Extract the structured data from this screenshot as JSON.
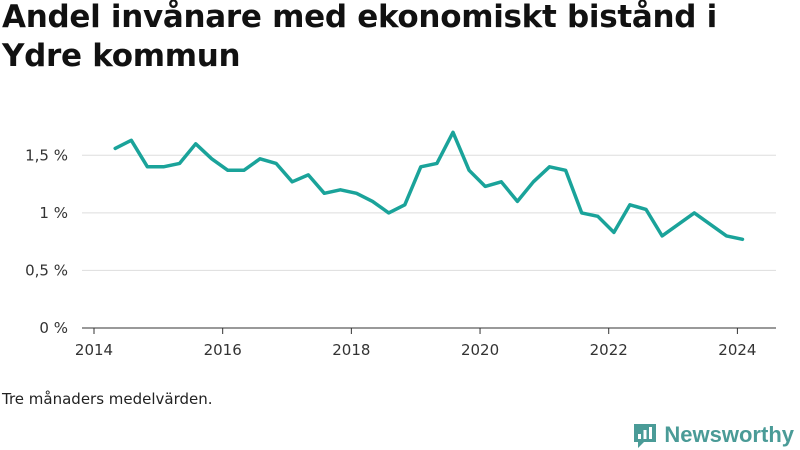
{
  "brand": {
    "name": "Newsworthy",
    "color": "#4a9b97",
    "icon": "newsworthy-logo-icon"
  },
  "footnote": "Tre månaders medelvärden.",
  "chart_data": {
    "type": "line",
    "title": "Andel invånare med ekonomiskt bistånd i Ydre kommun",
    "xlabel": "",
    "ylabel": "",
    "x_ticks": [
      "2014",
      "2016",
      "2018",
      "2020",
      "2022",
      "2024"
    ],
    "x_tick_values": [
      2014,
      2016,
      2018,
      2020,
      2022,
      2024
    ],
    "y_ticks": [
      "0 %",
      "0,5 %",
      "1 %",
      "1,5 %"
    ],
    "y_tick_values": [
      0,
      0.5,
      1,
      1.5
    ],
    "xlim": [
      2014,
      2024.6
    ],
    "ylim": [
      0,
      1.85
    ],
    "grid": true,
    "line_color": "#1aa39a",
    "series": [
      {
        "x": [
          2014.33,
          2014.58,
          2014.83,
          2015.08,
          2015.33,
          2015.58,
          2015.83,
          2016.08,
          2016.33,
          2016.58,
          2016.83,
          2017.08,
          2017.33,
          2017.58,
          2017.83,
          2018.08,
          2018.33,
          2018.58,
          2018.83,
          2019.08,
          2019.33,
          2019.58,
          2019.83,
          2020.08,
          2020.33,
          2020.58,
          2020.83,
          2021.08,
          2021.33,
          2021.58,
          2021.83,
          2022.08,
          2022.33,
          2022.58,
          2022.83,
          2023.08,
          2023.33,
          2023.58,
          2023.83,
          2024.08
        ],
        "values": [
          1.56,
          1.63,
          1.4,
          1.4,
          1.43,
          1.6,
          1.47,
          1.37,
          1.37,
          1.47,
          1.43,
          1.27,
          1.33,
          1.17,
          1.2,
          1.17,
          1.1,
          1.0,
          1.07,
          1.4,
          1.43,
          1.7,
          1.37,
          1.23,
          1.27,
          1.1,
          1.27,
          1.4,
          1.37,
          1.0,
          0.97,
          0.83,
          1.07,
          1.03,
          0.8,
          0.9,
          1.0,
          0.9,
          0.8,
          0.77
        ]
      }
    ]
  }
}
